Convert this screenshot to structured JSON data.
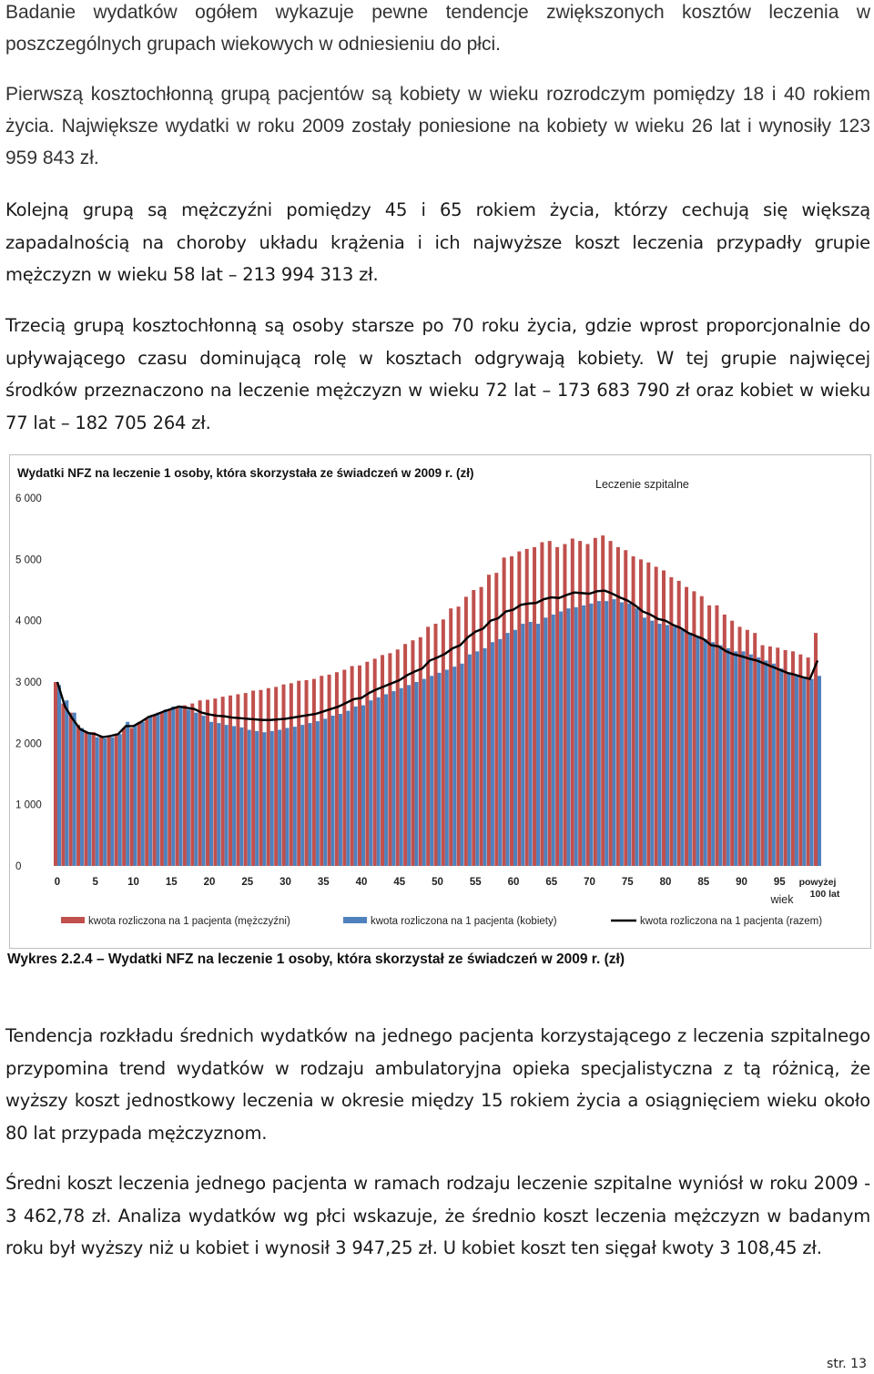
{
  "paragraphs": {
    "p1": "Badanie wydatków ogółem wykazuje pewne tendencje zwiększonych kosztów leczenia w poszczególnych grupach wiekowych w odniesieniu do płci.",
    "p2": "Pierwszą kosztochłonną grupą pacjentów są kobiety w wieku rozrodczym pomiędzy 18 i 40 rokiem życia. Największe wydatki w roku 2009 zostały poniesione na kobiety w wieku 26 lat i wynosiły 123 959 843 zł.",
    "p3": "Kolejną grupą są mężczyźni pomiędzy 45 i 65 rokiem życia, którzy cechują się większą zapadalnością na choroby układu krążenia i ich najwyższe koszt leczenia przypadły grupie mężczyzn w wieku 58 lat – 213 994 313 zł.",
    "p4": "Trzecią grupą kosztochłonną są osoby starsze po 70 roku życia, gdzie wprost proporcjonalnie do upływającego czasu dominującą rolę w kosztach odgrywają kobiety. W tej grupie najwięcej środków przeznaczono na leczenie mężczyzn w wieku 72 lat – 173 683 790 zł oraz kobiet w wieku 77 lat – 182 705 264 zł.",
    "p5": "Tendencja rozkładu średnich wydatków na jednego pacjenta korzystającego z leczenia szpitalnego przypomina trend wydatków w rodzaju ambulatoryjna opieka specjalistyczna z tą różnicą, że wyższy koszt jednostkowy leczenia w okresie między 15 rokiem życia a osiągnięciem wieku około 80 lat przypada mężczyznom.",
    "p6": "Średni koszt leczenia jednego pacjenta w ramach rodzaju leczenie szpitalne wyniósł w roku 2009 - 3 462,78 zł. Analiza wydatków wg płci wskazuje, że średnio koszt leczenia mężczyzn w badanym roku był wyższy niż u kobiet i wynosił 3 947,25 zł. U kobiet koszt ten sięgał kwoty 3 108,45 zł."
  },
  "caption": "Wykres 2.2.4 – Wydatki NFZ na leczenie 1 osoby, która skorzystał ze świadczeń w 2009 r. (zł)",
  "page_number": "str. 13",
  "chart_data": {
    "type": "bar",
    "title": "Wydatki NFZ na leczenie 1 osoby, która skorzystała ze świadczeń w 2009 r. (zł)",
    "subtitle": "Leczenie szpitalne",
    "xlabel": "wiek",
    "ylabel": "",
    "ylim": [
      0,
      6000
    ],
    "y_ticks": [
      "0",
      "1 000",
      "2 000",
      "3 000",
      "4 000",
      "5 000",
      "6 000"
    ],
    "x_tick_labels": [
      "0",
      "5",
      "10",
      "15",
      "20",
      "25",
      "30",
      "35",
      "40",
      "45",
      "50",
      "55",
      "60",
      "65",
      "70",
      "75",
      "80",
      "85",
      "90",
      "95"
    ],
    "x_last_label": "powyżej 100 lat",
    "grid": false,
    "legend_position": "bottom",
    "colors": {
      "men": "#c0504d",
      "women": "#4f81bd",
      "total": "#000000"
    },
    "categories": [
      0,
      1,
      2,
      3,
      4,
      5,
      6,
      7,
      8,
      9,
      10,
      11,
      12,
      13,
      14,
      15,
      16,
      17,
      18,
      19,
      20,
      21,
      22,
      23,
      24,
      25,
      26,
      27,
      28,
      29,
      30,
      31,
      32,
      33,
      34,
      35,
      36,
      37,
      38,
      39,
      40,
      41,
      42,
      43,
      44,
      45,
      46,
      47,
      48,
      49,
      50,
      51,
      52,
      53,
      54,
      55,
      56,
      57,
      58,
      59,
      60,
      61,
      62,
      63,
      64,
      65,
      66,
      67,
      68,
      69,
      70,
      71,
      72,
      73,
      74,
      75,
      76,
      77,
      78,
      79,
      80,
      81,
      82,
      83,
      84,
      85,
      86,
      87,
      88,
      89,
      90,
      91,
      92,
      93,
      94,
      95,
      96,
      97,
      98,
      99,
      100
    ],
    "series": [
      {
        "name": "kwota rozliczona na 1 pacjenta (mężczyźni)",
        "values": [
          3000,
          2650,
          2500,
          2300,
          2200,
          2180,
          2120,
          2100,
          2150,
          2250,
          2250,
          2350,
          2400,
          2450,
          2500,
          2550,
          2600,
          2620,
          2650,
          2700,
          2710,
          2730,
          2760,
          2780,
          2800,
          2820,
          2860,
          2870,
          2900,
          2920,
          2960,
          2980,
          3020,
          3030,
          3050,
          3100,
          3120,
          3160,
          3200,
          3260,
          3270,
          3330,
          3380,
          3440,
          3470,
          3530,
          3620,
          3680,
          3730,
          3900,
          3950,
          4020,
          4200,
          4230,
          4390,
          4500,
          4550,
          4750,
          4780,
          5030,
          5050,
          5130,
          5170,
          5200,
          5280,
          5300,
          5200,
          5250,
          5340,
          5300,
          5250,
          5350,
          5390,
          5300,
          5200,
          5150,
          5050,
          5000,
          4950,
          4880,
          4820,
          4710,
          4650,
          4550,
          4480,
          4400,
          4250,
          4250,
          4100,
          4000,
          3900,
          3850,
          3800,
          3600,
          3580,
          3560,
          3520,
          3500,
          3450,
          3400,
          3800
        ]
      },
      {
        "name": "kwota rozliczona na 1 pacjenta (kobiety)",
        "values": [
          2950,
          2700,
          2500,
          2250,
          2150,
          2100,
          2080,
          2100,
          2150,
          2350,
          2300,
          2350,
          2450,
          2500,
          2550,
          2600,
          2600,
          2550,
          2500,
          2450,
          2350,
          2330,
          2300,
          2280,
          2260,
          2220,
          2200,
          2180,
          2200,
          2220,
          2250,
          2270,
          2300,
          2330,
          2360,
          2400,
          2450,
          2480,
          2530,
          2600,
          2620,
          2700,
          2750,
          2800,
          2850,
          2900,
          2950,
          3000,
          3050,
          3100,
          3150,
          3200,
          3250,
          3300,
          3450,
          3500,
          3550,
          3650,
          3700,
          3800,
          3850,
          3950,
          3980,
          3950,
          4050,
          4100,
          4150,
          4200,
          4220,
          4250,
          4280,
          4320,
          4320,
          4350,
          4300,
          4280,
          4200,
          4050,
          4000,
          3950,
          3930,
          3900,
          3850,
          3800,
          3750,
          3700,
          3650,
          3600,
          3550,
          3500,
          3500,
          3450,
          3400,
          3350,
          3300,
          3220,
          3150,
          3120,
          3080,
          3050,
          3100
        ]
      },
      {
        "name": "kwota rozliczona na 1 pacjenta (razem)",
        "values": [
          3000,
          2600,
          2400,
          2230,
          2170,
          2150,
          2100,
          2120,
          2150,
          2280,
          2280,
          2350,
          2430,
          2470,
          2520,
          2560,
          2600,
          2580,
          2560,
          2500,
          2470,
          2450,
          2440,
          2420,
          2410,
          2400,
          2390,
          2380,
          2380,
          2390,
          2400,
          2420,
          2440,
          2460,
          2480,
          2520,
          2560,
          2600,
          2660,
          2720,
          2740,
          2820,
          2880,
          2930,
          2980,
          3030,
          3110,
          3170,
          3220,
          3350,
          3400,
          3460,
          3550,
          3600,
          3730,
          3820,
          3870,
          4000,
          4040,
          4150,
          4180,
          4260,
          4280,
          4290,
          4350,
          4380,
          4370,
          4420,
          4460,
          4450,
          4440,
          4480,
          4490,
          4440,
          4380,
          4330,
          4250,
          4150,
          4100,
          4030,
          4000,
          3930,
          3880,
          3800,
          3750,
          3700,
          3600,
          3580,
          3500,
          3450,
          3420,
          3380,
          3350,
          3300,
          3250,
          3200,
          3150,
          3120,
          3080,
          3050,
          3350
        ]
      }
    ]
  }
}
